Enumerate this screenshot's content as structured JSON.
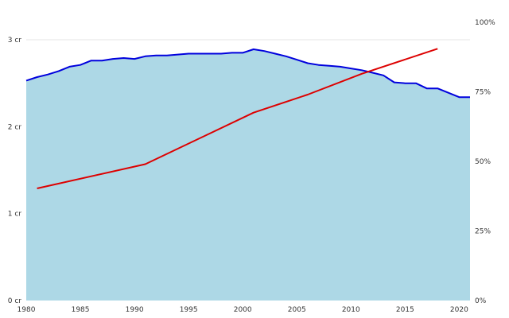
{
  "chart_data": {
    "type": "area",
    "title": "",
    "xlabel": "",
    "ylabel": "",
    "xlim": [
      1980,
      2021
    ],
    "ylim": [
      0,
      3
    ],
    "y2lim": [
      0,
      100
    ],
    "x_ticks": [
      1980,
      1985,
      1990,
      1995,
      2000,
      2005,
      2010,
      2015,
      2020
    ],
    "x_tick_labels": [
      "1980",
      "1985",
      "1990",
      "1995",
      "2000",
      "2005",
      "2010",
      "2015",
      "2020"
    ],
    "y_ticks": [
      0,
      1,
      2,
      3
    ],
    "y_tick_labels": [
      "0 cr",
      "1 cr",
      "2 cr",
      "3 cr"
    ],
    "y2_ticks": [
      0,
      25,
      50,
      75,
      100
    ],
    "y2_tick_labels": [
      "0%",
      "25%",
      "50%",
      "75%",
      "100%"
    ],
    "grid": "horizontal",
    "series": [
      {
        "axis": "left",
        "kind": "area",
        "fill": "#add8e6",
        "color": "#0000dd",
        "x": [
          1980,
          1981,
          1982,
          1983,
          1984,
          1985,
          1986,
          1987,
          1988,
          1989,
          1990,
          1991,
          1992,
          1993,
          1994,
          1995,
          1996,
          1997,
          1998,
          1999,
          2000,
          2001,
          2002,
          2003,
          2004,
          2005,
          2006,
          2007,
          2008,
          2009,
          2010,
          2011,
          2012,
          2013,
          2014,
          2015,
          2016,
          2017,
          2018,
          2019,
          2020,
          2021
        ],
        "values": [
          2.53,
          2.57,
          2.6,
          2.64,
          2.69,
          2.71,
          2.76,
          2.76,
          2.78,
          2.79,
          2.78,
          2.81,
          2.82,
          2.82,
          2.83,
          2.84,
          2.84,
          2.84,
          2.84,
          2.85,
          2.85,
          2.89,
          2.87,
          2.84,
          2.81,
          2.77,
          2.73,
          2.71,
          2.7,
          2.69,
          2.67,
          2.65,
          2.62,
          2.59,
          2.51,
          2.5,
          2.5,
          2.44,
          2.44,
          2.39,
          2.34,
          2.34
        ]
      },
      {
        "axis": "right",
        "kind": "line",
        "color": "#dd0000",
        "x": [
          1981,
          1991,
          2001,
          2006,
          2011,
          2018
        ],
        "values": [
          40.3,
          49.0,
          67.5,
          74.0,
          81.5,
          90.5
        ]
      }
    ]
  }
}
